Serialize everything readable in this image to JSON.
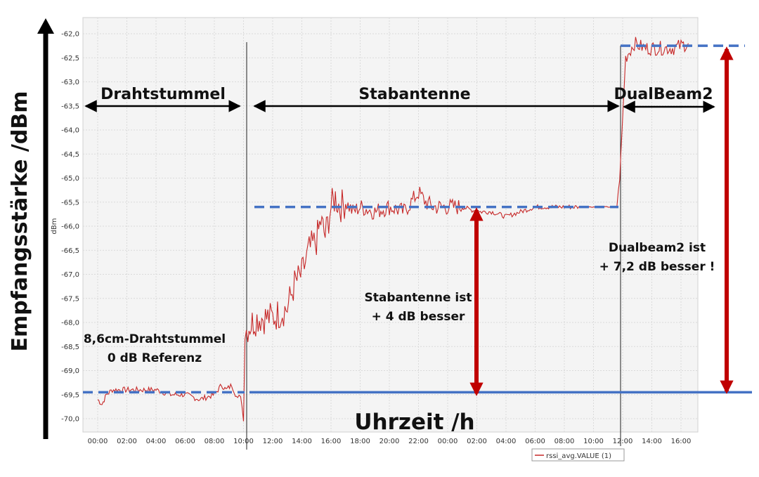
{
  "chart_data": {
    "type": "line",
    "ylabel": "Empfangsstärke /dBm",
    "xlabel": "Uhrzeit /h",
    "y_unit": "dBm",
    "ylim": [
      -70.2,
      -61.8
    ],
    "yticks": [
      "-62,0",
      "-62,5",
      "-63,0",
      "-63,5",
      "-64,0",
      "-64,5",
      "-65,0",
      "-65,5",
      "-66,0",
      "-66,5",
      "-67,0",
      "-67,5",
      "-68,0",
      "-68,5",
      "-69,0",
      "-69,5",
      "-70,0"
    ],
    "xticks": [
      "00:00",
      "02:00",
      "04:00",
      "06:00",
      "08:00",
      "10:00",
      "12:00",
      "14:00",
      "16:00",
      "18:00",
      "20:00",
      "22:00",
      "00:00",
      "02:00",
      "04:00",
      "06:00",
      "08:00",
      "10:00",
      "12:00",
      "14:00",
      "16:00"
    ],
    "grid": true,
    "legend": {
      "position": "bottom-right",
      "entries": [
        "rssi_avg.VALUE (1)"
      ]
    },
    "series": [
      {
        "name": "rssi_avg.VALUE (1)",
        "color": "#c62828",
        "x": [
          0,
          0.3,
          0.6,
          1.0,
          1.5,
          2,
          3,
          4,
          5,
          6,
          7,
          8,
          8.5,
          8.8,
          9.2,
          9.6,
          9.8,
          10.0,
          10.1,
          10.3,
          10.6,
          11,
          12,
          13,
          13.5,
          14,
          14.5,
          15,
          15.3,
          15.6,
          16,
          16.3,
          16.6,
          17,
          17.5,
          18,
          19,
          20,
          21,
          22,
          22.5,
          23,
          24,
          25,
          26,
          27,
          28,
          29,
          30,
          31,
          32,
          33,
          34,
          35,
          35.6,
          35.8,
          36.2,
          36.8,
          37.5,
          38.5,
          39.5,
          40.5
        ],
        "y": [
          -69.6,
          -69.7,
          -69.5,
          -69.4,
          -69.4,
          -69.4,
          -69.4,
          -69.4,
          -69.5,
          -69.5,
          -69.6,
          -69.5,
          -69.3,
          -69.4,
          -69.3,
          -69.6,
          -69.5,
          -70.0,
          -68.2,
          -68.1,
          -68.0,
          -67.9,
          -67.9,
          -67.7,
          -67.2,
          -67.0,
          -66.5,
          -66.3,
          -65.9,
          -66.2,
          -65.6,
          -65.4,
          -65.6,
          -65.5,
          -65.7,
          -65.6,
          -65.7,
          -65.6,
          -65.7,
          -65.3,
          -65.5,
          -65.6,
          -65.6,
          -65.6,
          -65.7,
          -65.7,
          -65.8,
          -65.7,
          -65.6,
          -65.6,
          -65.6,
          -65.6,
          -65.6,
          -65.6,
          -65.6,
          -65.0,
          -62.5,
          -62.2,
          -62.3,
          -62.3,
          -62.3,
          -62.2
        ]
      }
    ],
    "reference_lines": [
      {
        "name": "baseline",
        "y": -69.45,
        "style": "solid",
        "color": "#4472c4"
      },
      {
        "name": "drahtstummel-level",
        "y": -69.45,
        "style": "dashed",
        "color": "#4472c4"
      },
      {
        "name": "stabantenne-level",
        "y": -65.6,
        "style": "dashed",
        "color": "#4472c4"
      },
      {
        "name": "dualbeam2-level",
        "y": -62.25,
        "style": "dashed",
        "color": "#4472c4"
      }
    ],
    "annotations": {
      "section_drahtstummel": "Drahtstummel",
      "section_stabantenne": "Stabantenne",
      "section_dualbeam": "DualBeam2",
      "ref_line1": "8,6cm-Drahtstummel",
      "ref_line2": "0 dB Referenz",
      "stab_line1": "Stabantenne ist",
      "stab_line2": "+ 4 dB besser",
      "dual_line1": "Dualbeam2 ist",
      "dual_line2": "+ 7,2 dB besser !"
    },
    "colors": {
      "series": "#c62828",
      "reference": "#4472c4",
      "arrow_red": "#c00000",
      "arrow_black": "#000000"
    }
  }
}
